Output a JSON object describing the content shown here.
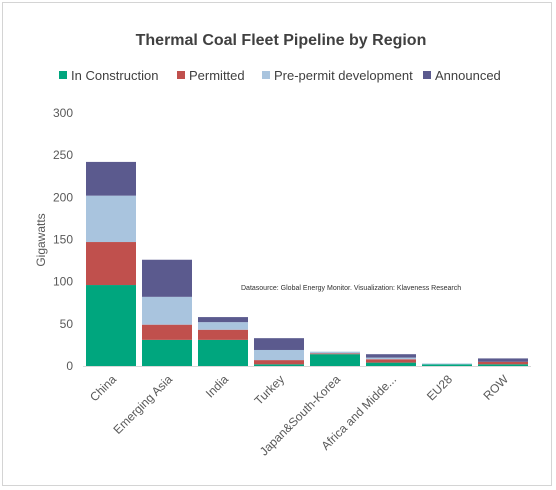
{
  "colors": {
    "in_construction": "#00A67E",
    "permitted": "#C0504D",
    "pre_permit": "#A9C4DE",
    "announced": "#5B5A8E",
    "axis": "#d9d9d9"
  },
  "chart_data": {
    "type": "bar",
    "stacked": true,
    "title": "Thermal Coal Fleet Pipeline by Region",
    "ylabel": "Gigawatts",
    "xlabel": "",
    "ylim": [
      0,
      300
    ],
    "yticks": [
      "0",
      "50",
      "100",
      "150",
      "200",
      "250",
      "300"
    ],
    "grid": false,
    "legend_position": "top",
    "annotation": "Datasource: Global Energy Monitor. Visualization: Klaveness Research",
    "categories": [
      "China",
      "Emerging Asia",
      "India",
      "Turkey",
      "Japan&South-Korea",
      "Africa and Midde...",
      "EU28",
      "ROW"
    ],
    "series": [
      {
        "name": "In Construction",
        "values": [
          96,
          31,
          31,
          2,
          14,
          4,
          2,
          2
        ]
      },
      {
        "name": "Permitted",
        "values": [
          51,
          18,
          12,
          5,
          1,
          4,
          0,
          3
        ]
      },
      {
        "name": "Pre-permit development",
        "values": [
          55,
          33,
          9,
          12,
          2,
          2,
          1,
          0
        ]
      },
      {
        "name": "Announced",
        "values": [
          40,
          44,
          6,
          14,
          0,
          4,
          0,
          4
        ]
      }
    ]
  }
}
